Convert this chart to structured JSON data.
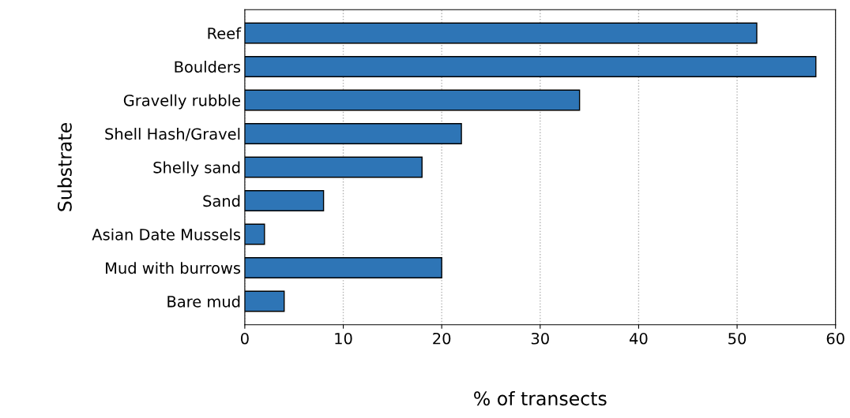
{
  "chart_data": {
    "type": "bar",
    "orientation": "horizontal",
    "categories": [
      "Reef",
      "Boulders",
      "Gravelly rubble",
      "Shell Hash/Gravel",
      "Shelly sand",
      "Sand",
      "Asian Date Mussels",
      "Mud with burrows",
      "Bare mud"
    ],
    "values": [
      52,
      58,
      34,
      22,
      18,
      8,
      2,
      20,
      4
    ],
    "color": "#2e75b6",
    "xlabel": "% of transects",
    "ylabel": "Substrate",
    "xlim": [
      0,
      60
    ],
    "xticks": [
      0,
      10,
      20,
      30,
      40,
      50,
      60
    ],
    "grid": "x"
  }
}
